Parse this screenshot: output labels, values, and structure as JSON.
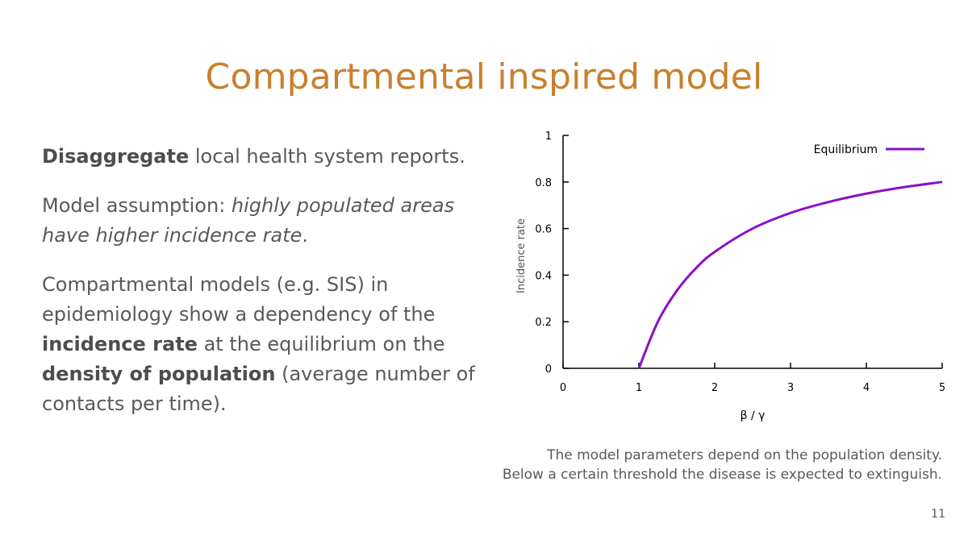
{
  "slide": {
    "title": "Compartmental inspired model",
    "paragraphs": [
      [
        {
          "text": "Disaggregate",
          "style": "strong"
        },
        {
          "text": " local health system reports.",
          "style": "normal"
        }
      ],
      [
        {
          "text": "Model assumption: ",
          "style": "normal"
        },
        {
          "text": "highly populated areas have higher incidence rate",
          "style": "em"
        },
        {
          "text": ".",
          "style": "normal"
        }
      ],
      [
        {
          "text": "Compartmental models (e.g. SIS) in epidemiology show a dependency of the ",
          "style": "normal"
        },
        {
          "text": "incidence rate",
          "style": "strong"
        },
        {
          "text": " at the equilibrium on the ",
          "style": "normal"
        },
        {
          "text": "density of population",
          "style": "strong"
        },
        {
          "text": " (average number of contacts per time).",
          "style": "normal"
        }
      ]
    ],
    "caption": [
      "The model parameters depend on the population density.",
      "Below a certain threshold the disease is expected to extinguish."
    ],
    "page_number": "11"
  },
  "colors": {
    "title": "#c8802e",
    "text": "#595959",
    "series": "#8a0fc9"
  },
  "chart_data": {
    "type": "line",
    "xlabel": "β / γ",
    "ylabel": "Incidence rate",
    "xlim": [
      0,
      5
    ],
    "ylim": [
      0,
      1
    ],
    "x_ticks": [
      "0",
      "1",
      "2",
      "3",
      "4",
      "5"
    ],
    "y_ticks": [
      "0",
      "0.2",
      "0.4",
      "0.6",
      "0.8",
      "1"
    ],
    "legend_position": "top-right",
    "grid": false,
    "series": [
      {
        "name": "Equilibrium",
        "x": [
          1,
          1.25,
          1.5,
          1.75,
          2,
          2.5,
          3,
          3.5,
          4,
          4.5,
          5
        ],
        "y": [
          0,
          0.2,
          0.333,
          0.429,
          0.5,
          0.6,
          0.667,
          0.714,
          0.75,
          0.778,
          0.8
        ]
      }
    ]
  }
}
